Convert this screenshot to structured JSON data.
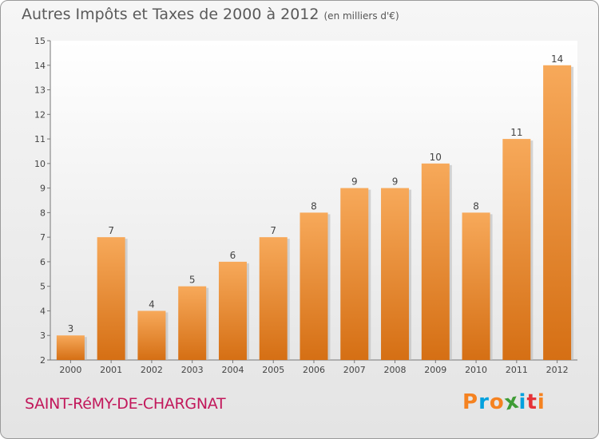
{
  "header": {
    "title": "Autres Impôts et Taxes de 2000 à 2012",
    "subtitle": "(en milliers d'€)"
  },
  "footer": {
    "commune": "SAINT-RéMY-DE-CHARGNAT",
    "logo_text": "Proxiti"
  },
  "colors": {
    "bar_light": "#f7a95a",
    "bar_dark": "#d56f14",
    "commune": "#c2185b",
    "logo": [
      "#f58220",
      "#00a1de",
      "#f58220",
      "#3f9c35",
      "#00a1de",
      "#e53238",
      "#f58220"
    ]
  },
  "chart_data": {
    "type": "bar",
    "title": "Autres Impôts et Taxes de 2000 à 2012",
    "subtitle": "(en milliers d'€)",
    "categories": [
      "2000",
      "2001",
      "2002",
      "2003",
      "2004",
      "2005",
      "2006",
      "2007",
      "2008",
      "2009",
      "2010",
      "2011",
      "2012"
    ],
    "values": [
      3,
      7,
      4,
      5,
      6,
      7,
      8,
      9,
      9,
      10,
      8,
      11,
      14
    ],
    "data_labels": [
      "3",
      "7",
      "4",
      "5",
      "6",
      "7",
      "8",
      "9",
      "9",
      "10",
      "8",
      "11",
      "14"
    ],
    "ylim": [
      2,
      15
    ],
    "yticks": [
      "2",
      "3",
      "4",
      "5",
      "6",
      "7",
      "8",
      "9",
      "10",
      "11",
      "12",
      "13",
      "14",
      "15"
    ],
    "grid": false,
    "legend": "none",
    "xlabel": "",
    "ylabel": ""
  }
}
